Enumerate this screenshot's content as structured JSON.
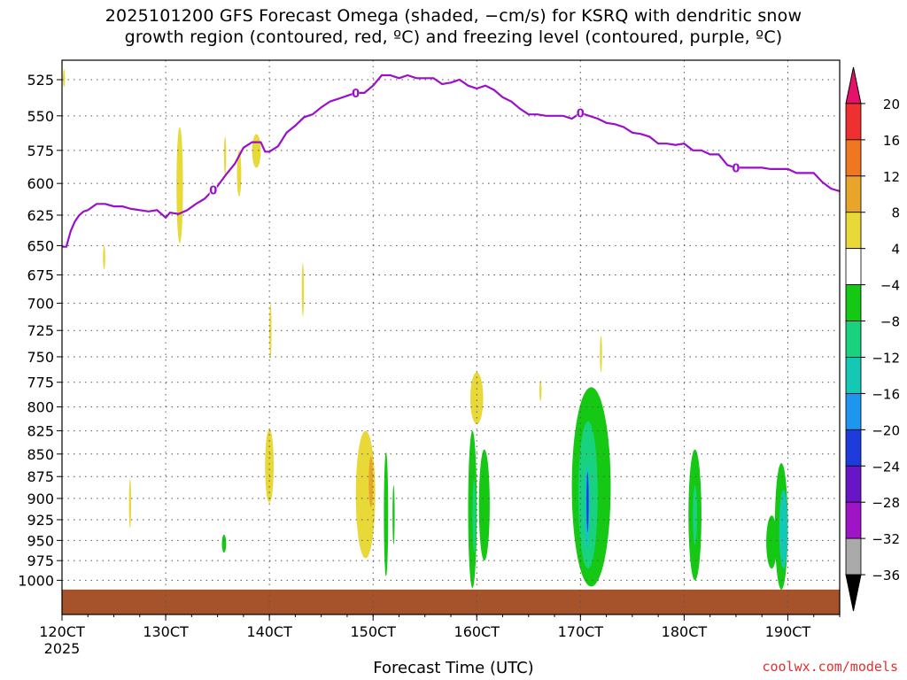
{
  "title": "2025101200 GFS Forecast Omega (shaded, −cm/s) for KSRQ with dendritic snow\ngrowth region (contoured, red, ºC) and freezing level (contoured, purple, ºC)",
  "xlabel": "Forecast Time (UTC)",
  "credit": "coolwx.com/models",
  "chart_data": {
    "type": "heatmap",
    "title": "2025101200 GFS Forecast Omega (shaded, −cm/s) for KSRQ with dendritic snow growth region (contoured, red, ºC) and freezing level (contoured, purple, ºC)",
    "xlabel": "Forecast Time (UTC)",
    "ylabel": "",
    "y_scale": "log-pressure (hPa)",
    "yticks": [
      525,
      550,
      575,
      600,
      625,
      650,
      675,
      700,
      725,
      750,
      775,
      800,
      825,
      850,
      875,
      900,
      925,
      950,
      975,
      1000
    ],
    "xticks": [
      {
        "label": "120CT",
        "hours": 0,
        "sub": "2025"
      },
      {
        "label": "130CT",
        "hours": 24
      },
      {
        "label": "140CT",
        "hours": 48
      },
      {
        "label": "150CT",
        "hours": 72
      },
      {
        "label": "160CT",
        "hours": 96
      },
      {
        "label": "170CT",
        "hours": 120
      },
      {
        "label": "180CT",
        "hours": 144
      },
      {
        "label": "190CT",
        "hours": 168
      }
    ],
    "xlim_hours": [
      0,
      180
    ],
    "ylim_hpa": [
      1045,
      512
    ],
    "grid": true,
    "colorbar": {
      "labels": [
        "20",
        "16",
        "12",
        "8",
        "4",
        "−4",
        "−8",
        "−12",
        "−16",
        "−20",
        "−24",
        "−28",
        "−32",
        "−36"
      ],
      "colors": [
        "#e6116b",
        "#ee3030",
        "#ee7720",
        "#e9a52a",
        "#e8d838",
        "#ffffff",
        "#14c814",
        "#19d27d",
        "#14c8b4",
        "#1e96f0",
        "#1e3cdc",
        "#6a14c8",
        "#a014c8",
        "#aaaaaa",
        "#000000"
      ]
    },
    "freezing_level": {
      "label": "0",
      "color": "#9a10c8",
      "hours": [
        0,
        1,
        2,
        3,
        4,
        5,
        6,
        8,
        10,
        12,
        14,
        16,
        18,
        20,
        22,
        24,
        25,
        27,
        29,
        31,
        33,
        35,
        36,
        38,
        40,
        42,
        44,
        46,
        47,
        48,
        50,
        52,
        54,
        56,
        58,
        60,
        62,
        63,
        64,
        66,
        68,
        70,
        72,
        74,
        76,
        78,
        80,
        82,
        84,
        86,
        88,
        90,
        92,
        94,
        96,
        98,
        100,
        102,
        104,
        106,
        108,
        110,
        112,
        114,
        116,
        118,
        120,
        122,
        124,
        126,
        128,
        130,
        132,
        134,
        136,
        138,
        140,
        142,
        144,
        146,
        148,
        150,
        152,
        154,
        156,
        158,
        160,
        162,
        164,
        166,
        168,
        170,
        172,
        174,
        176,
        178,
        180
      ],
      "pressure_hpa": [
        651,
        651,
        638,
        630,
        625,
        622,
        621,
        616,
        616,
        618,
        618,
        620,
        621,
        622,
        621,
        627,
        623,
        624,
        621,
        616,
        612,
        605,
        602,
        593,
        585,
        573,
        569,
        569,
        576,
        576,
        572,
        562,
        557,
        551,
        549,
        544,
        540,
        539,
        538,
        536,
        534,
        534,
        529,
        522,
        522,
        524,
        522,
        524,
        524,
        524,
        528,
        527,
        525,
        529,
        531,
        529,
        532,
        537,
        540,
        545,
        549,
        549,
        550,
        550,
        550,
        552,
        548,
        550,
        552,
        555,
        556,
        558,
        562,
        563,
        565,
        570,
        570,
        571,
        570,
        575,
        575,
        578,
        578,
        586,
        588,
        588,
        588,
        588,
        589,
        589,
        589,
        592,
        592,
        592,
        599,
        604,
        606
      ]
    },
    "shaded_regions": [
      {
        "hours": [
          0.3,
          0.6
        ],
        "p_top": 518,
        "p_bot": 530,
        "value": 6
      },
      {
        "hours": [
          9.5,
          10
        ],
        "p_top": 650,
        "p_bot": 670,
        "value": 6
      },
      {
        "hours": [
          26.5,
          28
        ],
        "p_top": 558,
        "p_bot": 648,
        "value": 6
      },
      {
        "hours": [
          15.5,
          16
        ],
        "p_top": 878,
        "p_bot": 935,
        "value": 6
      },
      {
        "hours": [
          37.5,
          38
        ],
        "p_top": 565,
        "p_bot": 593,
        "value": 6
      },
      {
        "hours": [
          40.5,
          41.5
        ],
        "p_top": 575,
        "p_bot": 610,
        "value": 6
      },
      {
        "hours": [
          44,
          46
        ],
        "p_top": 563,
        "p_bot": 588,
        "value": 6
      },
      {
        "hours": [
          48,
          48.5
        ],
        "p_top": 700,
        "p_bot": 752,
        "value": 6
      },
      {
        "hours": [
          55.5,
          56
        ],
        "p_top": 665,
        "p_bot": 712,
        "value": 6
      },
      {
        "hours": [
          37,
          38
        ],
        "p_top": 943,
        "p_bot": 965,
        "value": -6
      },
      {
        "hours": [
          47,
          49
        ],
        "p_top": 823,
        "p_bot": 905,
        "value": 6
      },
      {
        "hours": [
          68,
          72.5
        ],
        "p_top": 825,
        "p_bot": 972,
        "value": 6
      },
      {
        "hours": [
          71,
          72
        ],
        "p_top": 853,
        "p_bot": 910,
        "value": 10
      },
      {
        "hours": [
          74.5,
          75.5
        ],
        "p_top": 848,
        "p_bot": 995,
        "value": -6
      },
      {
        "hours": [
          76.5,
          77
        ],
        "p_top": 885,
        "p_bot": 955,
        "value": -6
      },
      {
        "hours": [
          94.5,
          97.5
        ],
        "p_top": 765,
        "p_bot": 818,
        "value": 6
      },
      {
        "hours": [
          110.5,
          111
        ],
        "p_top": 773,
        "p_bot": 794,
        "value": 6
      },
      {
        "hours": [
          94,
          96
        ],
        "p_top": 825,
        "p_bot": 1010,
        "value": -6
      },
      {
        "hours": [
          95,
          95.8
        ],
        "p_top": 878,
        "p_bot": 965,
        "value": -10
      },
      {
        "hours": [
          96.5,
          99
        ],
        "p_top": 845,
        "p_bot": 975,
        "value": -6
      },
      {
        "hours": [
          124.5,
          125
        ],
        "p_top": 730,
        "p_bot": 765,
        "value": 6
      },
      {
        "hours": [
          118,
          127
        ],
        "p_top": 780,
        "p_bot": 1008,
        "value": -6
      },
      {
        "hours": [
          119.5,
          124
        ],
        "p_top": 815,
        "p_bot": 985,
        "value": -10
      },
      {
        "hours": [
          120.8,
          122.3
        ],
        "p_top": 860,
        "p_bot": 960,
        "value": -14
      },
      {
        "hours": [
          121.4,
          121.9
        ],
        "p_top": 870,
        "p_bot": 940,
        "value": -22
      },
      {
        "hours": [
          145,
          148
        ],
        "p_top": 845,
        "p_bot": 1000,
        "value": -6
      },
      {
        "hours": [
          146,
          147
        ],
        "p_top": 885,
        "p_bot": 955,
        "value": -10
      },
      {
        "hours": [
          163,
          165.5
        ],
        "p_top": 920,
        "p_bot": 985,
        "value": -6
      },
      {
        "hours": [
          165,
          168
        ],
        "p_top": 860,
        "p_bot": 1012,
        "value": -6
      },
      {
        "hours": [
          166,
          168
        ],
        "p_top": 890,
        "p_bot": 985,
        "value": -12
      }
    ],
    "surface_terrain": {
      "color": "#a6522a",
      "p_top": 1012,
      "p_bot": 1040
    }
  }
}
